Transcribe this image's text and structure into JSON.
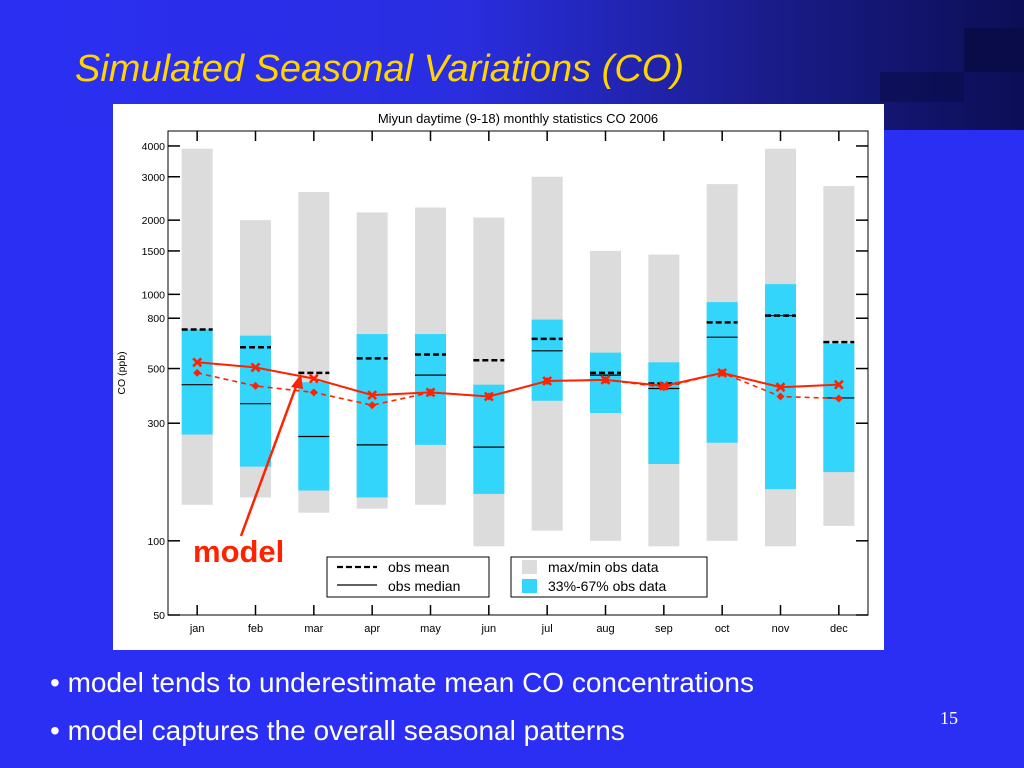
{
  "slide": {
    "title": "Simulated Seasonal Variations (CO)",
    "bullets": [
      "• model tends to underestimate mean CO concentrations",
      "• model captures the overall seasonal patterns"
    ],
    "page_number": "15",
    "callout_label": "model",
    "colors": {
      "background": "#2b2ff3",
      "title": "#ffd400",
      "callout": "#ff2200"
    }
  },
  "chart_data": {
    "type": "box",
    "title": "Miyun daytime (9-18) monthly statistics CO 2006",
    "ylabel": "CO (ppb)",
    "xlabel": "",
    "yscale": "log",
    "ylim": [
      50,
      4600
    ],
    "yticks": [
      50,
      100,
      300,
      500,
      800,
      1000,
      1500,
      2000,
      3000,
      4000
    ],
    "categories": [
      "jan",
      "feb",
      "mar",
      "apr",
      "may",
      "jun",
      "jul",
      "aug",
      "sep",
      "oct",
      "nov",
      "dec"
    ],
    "series": [
      {
        "name": "max/min obs data",
        "kind": "range",
        "color": "#dcdcdc",
        "low": [
          140,
          150,
          130,
          135,
          140,
          95,
          110,
          100,
          95,
          100,
          95,
          115
        ],
        "high": [
          3900,
          2000,
          2600,
          2150,
          2250,
          2050,
          3000,
          1500,
          1450,
          2800,
          3900,
          2750
        ]
      },
      {
        "name": "33%-67% obs data",
        "kind": "range",
        "color": "#33d5fb",
        "low": [
          270,
          200,
          160,
          150,
          245,
          155,
          370,
          330,
          205,
          250,
          162,
          190
        ],
        "high": [
          720,
          680,
          440,
          690,
          690,
          430,
          790,
          580,
          530,
          930,
          1100,
          630
        ]
      },
      {
        "name": "obs mean",
        "kind": "tick",
        "style": "dashed",
        "color": "#000000",
        "values": [
          720,
          610,
          480,
          550,
          570,
          540,
          660,
          480,
          435,
          770,
          820,
          640
        ]
      },
      {
        "name": "obs median",
        "kind": "tick",
        "style": "solid",
        "color": "#000000",
        "values": [
          430,
          360,
          265,
          245,
          470,
          240,
          590,
          470,
          415,
          670,
          820,
          380
        ]
      },
      {
        "name": "model",
        "kind": "line",
        "style": "solid",
        "color": "#ff2200",
        "values": [
          530,
          505,
          455,
          390,
          400,
          385,
          445,
          450,
          425,
          480,
          420,
          430
        ]
      },
      {
        "name": "model",
        "kind": "line",
        "style": "dashed",
        "color": "#ff2200",
        "values": [
          480,
          425,
          400,
          355,
          400,
          385,
          445,
          450,
          420,
          480,
          385,
          378
        ]
      }
    ],
    "legend": [
      {
        "label": "obs mean",
        "symbol": "dashed-line"
      },
      {
        "label": "obs median",
        "symbol": "solid-line"
      },
      {
        "label": "max/min obs data",
        "symbol": "gray-box"
      },
      {
        "label": "33%-67% obs data",
        "symbol": "cyan-box"
      }
    ],
    "legend_position": "bottom-center",
    "grid": false
  }
}
